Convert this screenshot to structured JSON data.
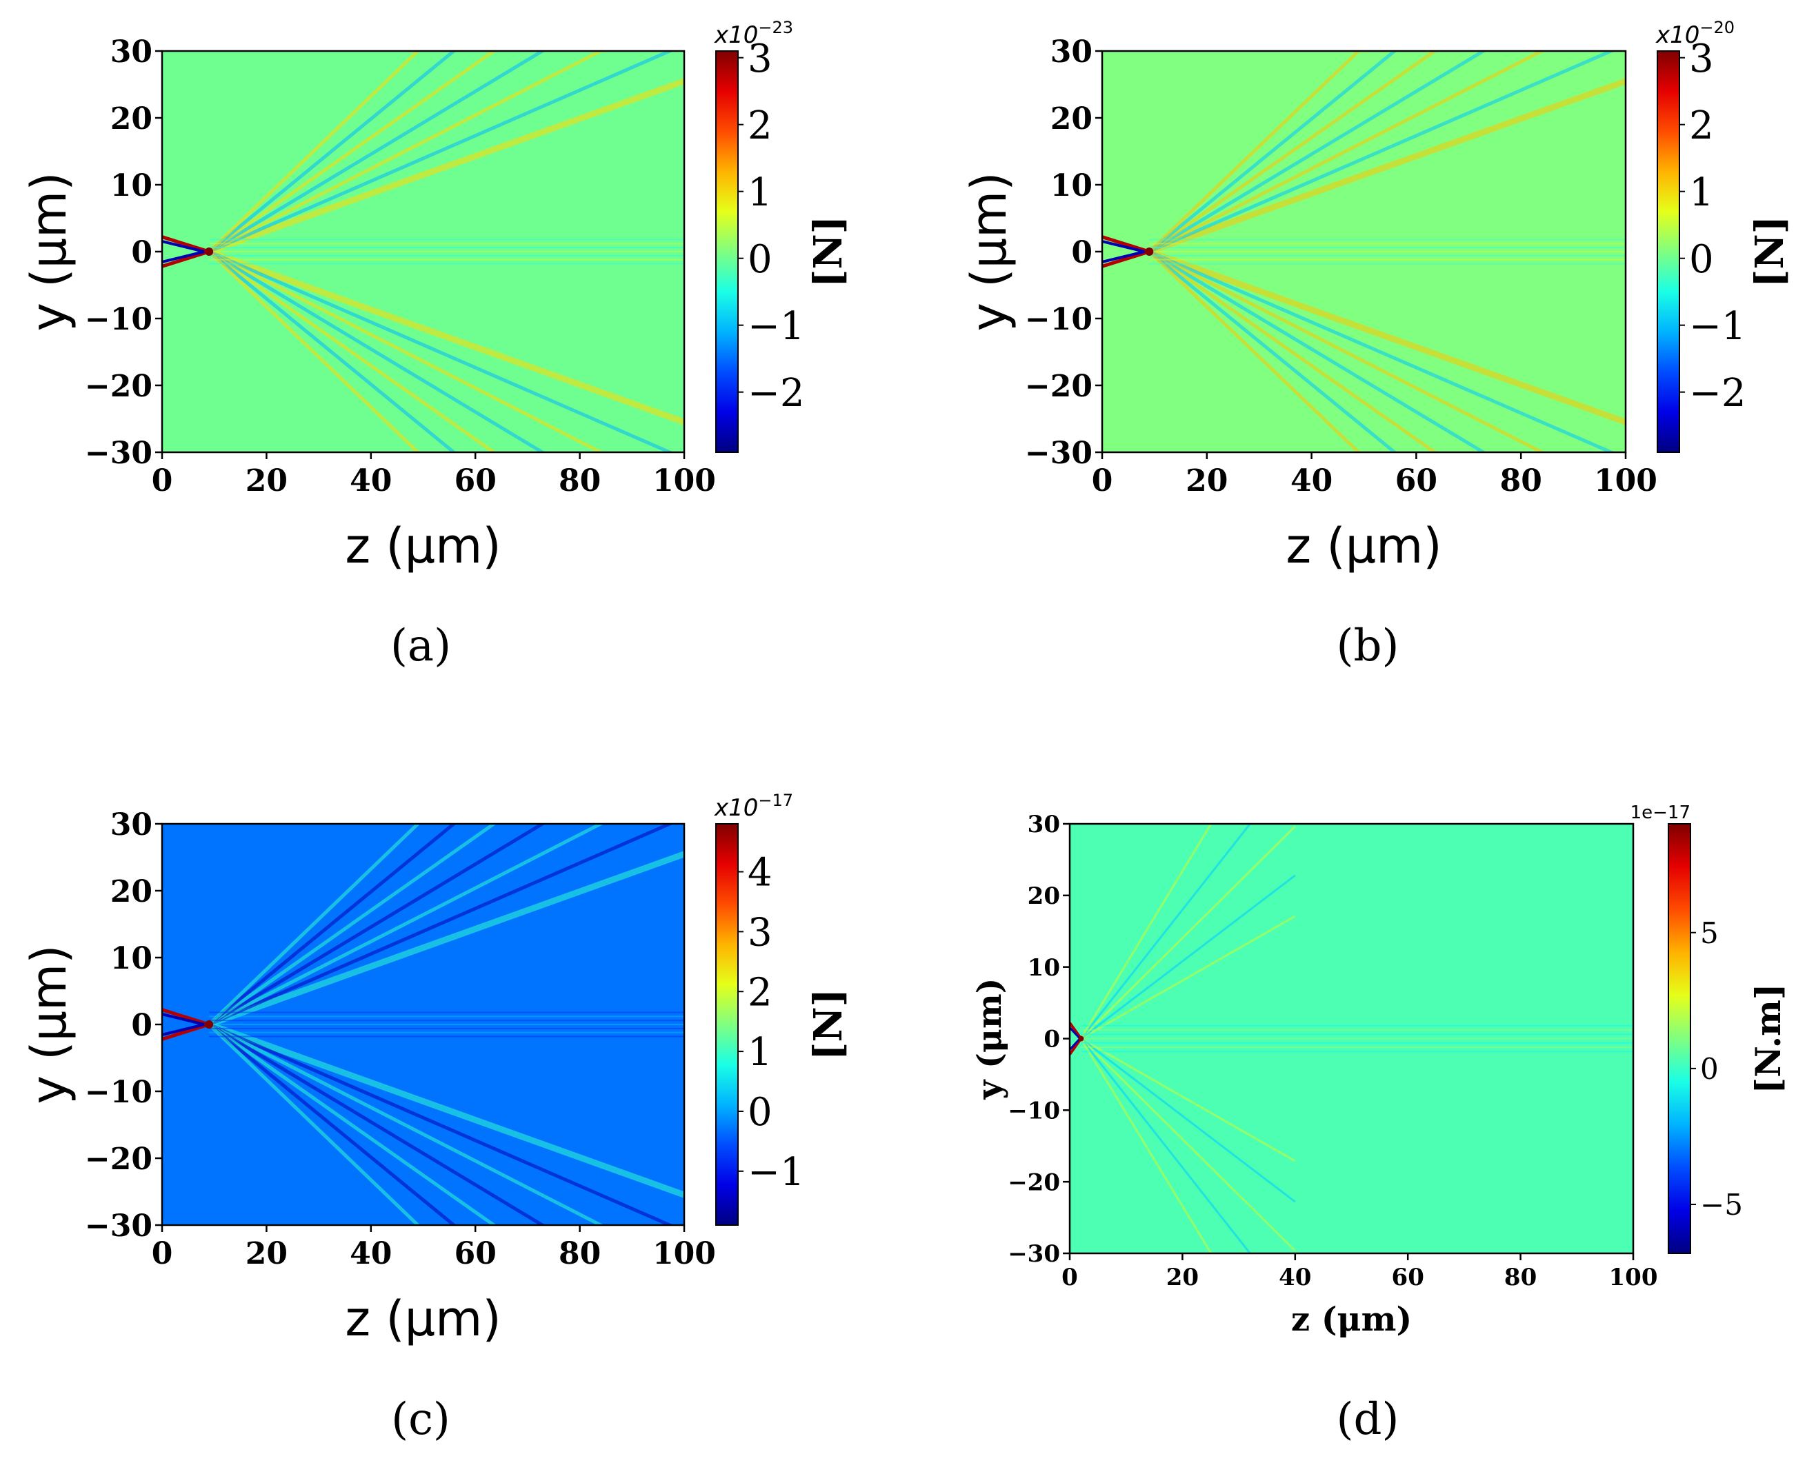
{
  "chart_data": [
    {
      "type": "heatmap",
      "panel": "(a)",
      "xlabel": "z (μm)",
      "ylabel": "y (μm)",
      "xlim": [
        0,
        100
      ],
      "ylim": [
        -30,
        30
      ],
      "xticks": [
        0,
        20,
        40,
        60,
        80,
        100
      ],
      "yticks": [
        -30,
        -20,
        -10,
        0,
        10,
        20,
        30
      ],
      "xtick_labels": [
        "0",
        "20",
        "40",
        "60",
        "80",
        "100"
      ],
      "ytick_labels": [
        "−30",
        "−20",
        "−10",
        "0",
        "10",
        "20",
        "30"
      ],
      "colormap": "jet",
      "colorbar": {
        "min": -2.9,
        "max": 3.1,
        "ticks": [
          -2,
          -1,
          0,
          1,
          2,
          3
        ],
        "tick_labels": [
          "−2",
          "−1",
          "0",
          "1",
          "2",
          "3"
        ],
        "exponent_prefix": "x10",
        "exponent_power": "−23",
        "unit": "[N]"
      },
      "background_value": 0.0,
      "focus_z": 9,
      "caption": "(a)"
    },
    {
      "type": "heatmap",
      "panel": "(b)",
      "xlabel": "z (μm)",
      "ylabel": "y (μm)",
      "xlim": [
        0,
        100
      ],
      "ylim": [
        -30,
        30
      ],
      "xticks": [
        0,
        20,
        40,
        60,
        80,
        100
      ],
      "yticks": [
        -30,
        -20,
        -10,
        0,
        10,
        20,
        30
      ],
      "xtick_labels": [
        "0",
        "20",
        "40",
        "60",
        "80",
        "100"
      ],
      "ytick_labels": [
        "−30",
        "−20",
        "−10",
        "0",
        "10",
        "20",
        "30"
      ],
      "colormap": "jet",
      "colorbar": {
        "min": -2.9,
        "max": 3.1,
        "ticks": [
          -2,
          -1,
          0,
          1,
          2,
          3
        ],
        "tick_labels": [
          "−2",
          "−1",
          "0",
          "1",
          "2",
          "3"
        ],
        "exponent_prefix": "x10",
        "exponent_power": "−20",
        "unit": "[N]"
      },
      "background_value": 0.1,
      "focus_z": 9,
      "caption": "(b)"
    },
    {
      "type": "heatmap",
      "panel": "(c)",
      "xlabel": "z (μm)",
      "ylabel": "y (μm)",
      "xlim": [
        0,
        100
      ],
      "ylim": [
        -30,
        30
      ],
      "xticks": [
        0,
        20,
        40,
        60,
        80,
        100
      ],
      "yticks": [
        -30,
        -20,
        -10,
        0,
        10,
        20,
        30
      ],
      "xtick_labels": [
        "0",
        "20",
        "40",
        "60",
        "80",
        "100"
      ],
      "ytick_labels": [
        "−30",
        "−20",
        "−10",
        "0",
        "10",
        "20",
        "30"
      ],
      "colormap": "jet",
      "colorbar": {
        "min": -1.9,
        "max": 4.8,
        "ticks": [
          -1,
          0,
          1,
          2,
          3,
          4
        ],
        "tick_labels": [
          "−1",
          "0",
          "1",
          "2",
          "3",
          "4"
        ],
        "exponent_prefix": "x10",
        "exponent_power": "−17",
        "unit": "[N]"
      },
      "background_value": -0.3,
      "focus_z": 9,
      "caption": "(c)"
    },
    {
      "type": "heatmap",
      "panel": "(d)",
      "xlabel": "z (μm)",
      "ylabel": "y (μm)",
      "xlim": [
        0,
        100
      ],
      "ylim": [
        -30,
        30
      ],
      "xticks": [
        0,
        20,
        40,
        60,
        80,
        100
      ],
      "yticks": [
        -30,
        -20,
        -10,
        0,
        10,
        20,
        30
      ],
      "xtick_labels": [
        "0",
        "20",
        "40",
        "60",
        "80",
        "100"
      ],
      "ytick_labels": [
        "−30",
        "−20",
        "−10",
        "0",
        "10",
        "20",
        "30"
      ],
      "colormap": "jet",
      "colorbar": {
        "min": -6.8,
        "max": 9.0,
        "ticks": [
          -5,
          0,
          5
        ],
        "tick_labels": [
          "−5",
          "0",
          "5"
        ],
        "exponent_label": "1e−17",
        "unit": "[N.m]"
      },
      "background_value": 0.3,
      "focus_z": 2,
      "caption": "(d)"
    }
  ]
}
